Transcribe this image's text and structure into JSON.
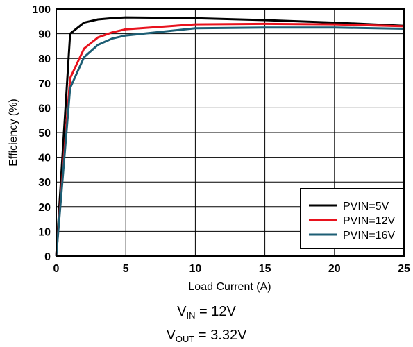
{
  "chart_data": {
    "type": "line",
    "xlabel": "Load Current (A)",
    "ylabel": "Efficiency (%)",
    "xlim": [
      0,
      25
    ],
    "ylim": [
      0,
      100
    ],
    "xticks": [
      "0",
      "5",
      "10",
      "15",
      "20",
      "25"
    ],
    "yticks": [
      "0",
      "10",
      "20",
      "30",
      "40",
      "50",
      "60",
      "70",
      "80",
      "90",
      "100"
    ],
    "grid": true,
    "legend_position": "bottom-right",
    "series": [
      {
        "name": "PVIN=5V",
        "color": "#000000",
        "x": [
          0,
          1,
          2,
          3,
          4,
          5,
          10,
          15,
          20,
          25
        ],
        "y": [
          0,
          90,
          94.5,
          95.8,
          96.3,
          96.6,
          96.3,
          95.5,
          94.5,
          93.2
        ]
      },
      {
        "name": "PVIN=12V",
        "color": "#e8121d",
        "x": [
          0,
          1,
          2,
          3,
          4,
          5,
          10,
          15,
          20,
          25
        ],
        "y": [
          0,
          72,
          84,
          88.5,
          90.5,
          91.8,
          93.8,
          94,
          93.8,
          93
        ]
      },
      {
        "name": "PVIN=16V",
        "color": "#1d5e74",
        "x": [
          0,
          1,
          2,
          3,
          4,
          5,
          10,
          15,
          20,
          25
        ],
        "y": [
          0,
          68,
          80.5,
          85.5,
          88,
          89.3,
          92.2,
          92.5,
          92.5,
          92
        ]
      }
    ]
  },
  "captions": {
    "vin_main": "V",
    "vin_sub": "IN",
    "vin_rest": " = 12V",
    "vout_main": "V",
    "vout_sub": "OUT",
    "vout_rest": " = 3.32V"
  }
}
